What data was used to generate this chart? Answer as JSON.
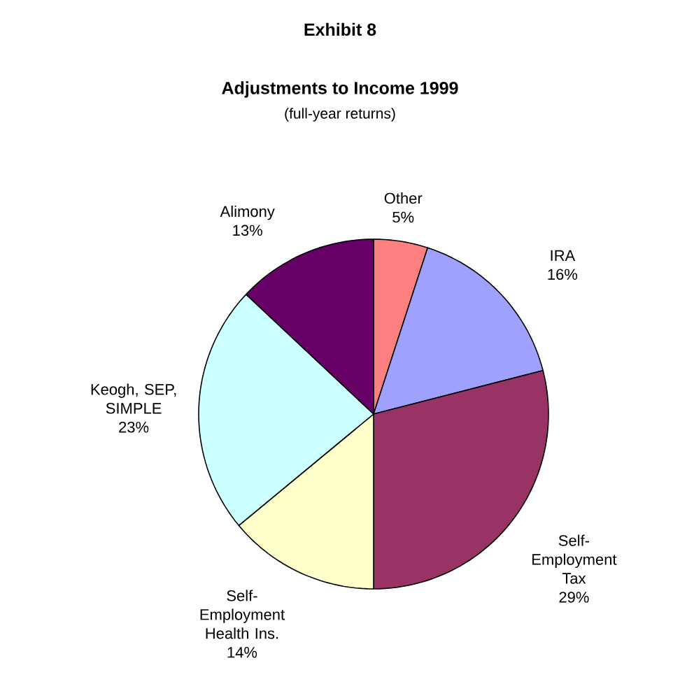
{
  "chart_data": {
    "type": "pie",
    "title": "Adjustments to Income 1999",
    "subtitle": "(full-year returns)",
    "annotations": [
      "Exhibit 8"
    ],
    "categories": [
      "Other",
      "IRA",
      "Self-Employment Tax",
      "Self-Employment Health Ins.",
      "Keogh, SEP, SIMPLE",
      "Alimony"
    ],
    "values": [
      5,
      16,
      29,
      14,
      23,
      13
    ],
    "value_labels": [
      "5%",
      "16%",
      "29%",
      "14%",
      "23%",
      "13%"
    ],
    "colors": [
      "#ff8080",
      "#a0a0ff",
      "#993366",
      "#ffffcc",
      "#ccffff",
      "#660066"
    ]
  }
}
